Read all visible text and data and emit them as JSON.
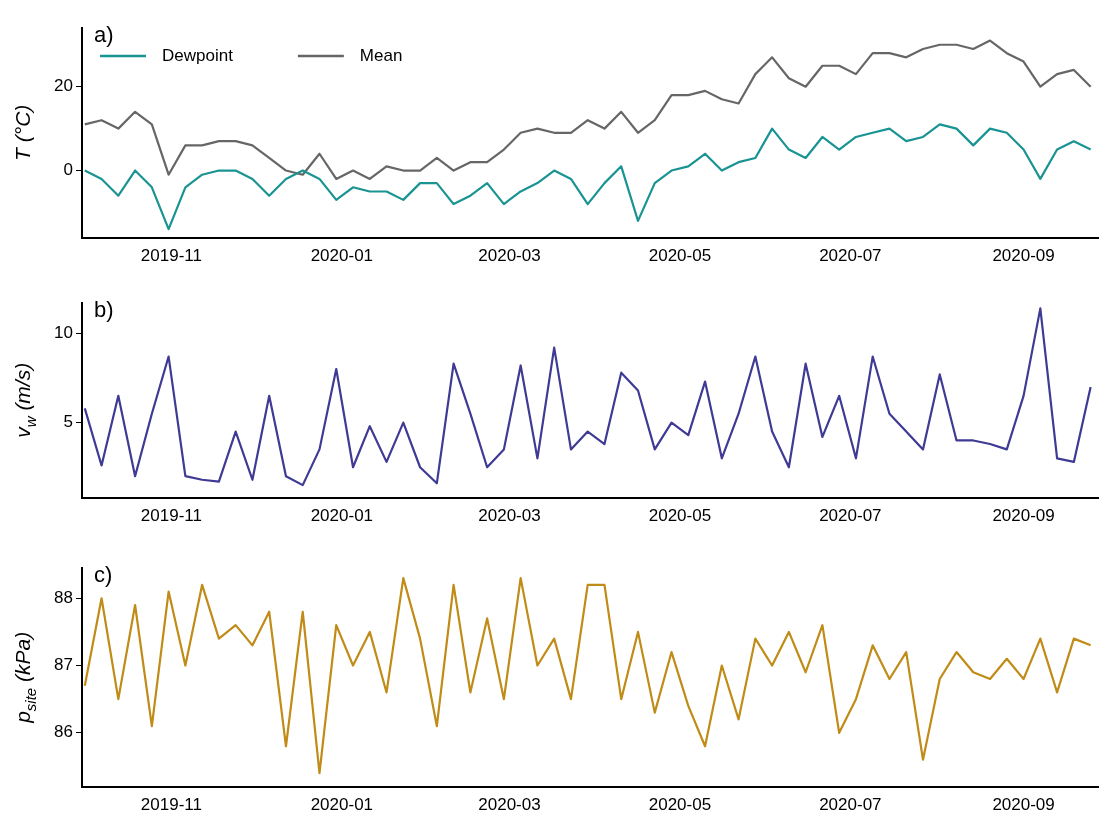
{
  "chart_data": [
    {
      "type": "line",
      "title": "a)",
      "ylabel": "T (°C)",
      "legend": "top left",
      "x": [
        "2019-10-01",
        "2019-10-07",
        "2019-10-13",
        "2019-10-19",
        "2019-10-25",
        "2019-10-31",
        "2019-11-06",
        "2019-11-12",
        "2019-11-18",
        "2019-11-24",
        "2019-11-30",
        "2019-12-06",
        "2019-12-12",
        "2019-12-18",
        "2019-12-24",
        "2019-12-30",
        "2020-01-05",
        "2020-01-11",
        "2020-01-17",
        "2020-01-23",
        "2020-01-29",
        "2020-02-04",
        "2020-02-10",
        "2020-02-16",
        "2020-02-22",
        "2020-02-28",
        "2020-03-05",
        "2020-03-11",
        "2020-03-17",
        "2020-03-23",
        "2020-03-29",
        "2020-04-04",
        "2020-04-10",
        "2020-04-16",
        "2020-04-22",
        "2020-04-28",
        "2020-05-04",
        "2020-05-10",
        "2020-05-16",
        "2020-05-22",
        "2020-05-28",
        "2020-06-03",
        "2020-06-09",
        "2020-06-15",
        "2020-06-21",
        "2020-06-27",
        "2020-07-03",
        "2020-07-09",
        "2020-07-15",
        "2020-07-21",
        "2020-07-27",
        "2020-08-02",
        "2020-08-08",
        "2020-08-14",
        "2020-08-20",
        "2020-08-26",
        "2020-09-01",
        "2020-09-07",
        "2020-09-13",
        "2020-09-19",
        "2020-09-25"
      ],
      "series": [
        {
          "name": "Dewpoint",
          "color": "#1a9393",
          "values": [
            0,
            -2,
            -6,
            0,
            -4,
            -14,
            -4,
            -1,
            0,
            0,
            -2,
            -6,
            -2,
            0,
            -2,
            -7,
            -4,
            -5,
            -5,
            -7,
            -3,
            -3,
            -8,
            -6,
            -3,
            -8,
            -5,
            -3,
            0,
            -2,
            -8,
            -3,
            1,
            -12,
            -3,
            0,
            1,
            4,
            0,
            2,
            3,
            10,
            5,
            3,
            8,
            5,
            8,
            9,
            10,
            7,
            8,
            11,
            10,
            6,
            10,
            9,
            5,
            -2,
            5,
            7,
            5
          ]
        },
        {
          "name": "Mean",
          "color": "#666666",
          "values": [
            11,
            12,
            10,
            14,
            11,
            -1,
            6,
            6,
            7,
            7,
            6,
            3,
            0,
            -1,
            4,
            -2,
            0,
            -2,
            1,
            0,
            0,
            3,
            0,
            2,
            2,
            5,
            9,
            10,
            9,
            9,
            12,
            10,
            14,
            9,
            12,
            18,
            18,
            19,
            17,
            16,
            23,
            27,
            22,
            20,
            25,
            25,
            23,
            28,
            28,
            27,
            29,
            30,
            30,
            29,
            31,
            28,
            26,
            20,
            23,
            24,
            20
          ]
        }
      ],
      "xlim": [
        "2019-09-30",
        "2020-09-28"
      ],
      "xticks": [
        {
          "value": "2019-11-01",
          "label": "2019-11"
        },
        {
          "value": "2020-01-01",
          "label": "2020-01"
        },
        {
          "value": "2020-03-01",
          "label": "2020-03"
        },
        {
          "value": "2020-05-01",
          "label": "2020-05"
        },
        {
          "value": "2020-07-01",
          "label": "2020-07"
        },
        {
          "value": "2020-09-01",
          "label": "2020-09"
        }
      ],
      "ylim": [
        -16,
        34
      ],
      "yticks": [
        0,
        20
      ]
    },
    {
      "type": "line",
      "title": "b)",
      "ylabel": "v$_{w}$ (m/s)",
      "x": [
        "2019-10-01",
        "2019-10-07",
        "2019-10-13",
        "2019-10-19",
        "2019-10-25",
        "2019-10-31",
        "2019-11-06",
        "2019-11-12",
        "2019-11-18",
        "2019-11-24",
        "2019-11-30",
        "2019-12-06",
        "2019-12-12",
        "2019-12-18",
        "2019-12-24",
        "2019-12-30",
        "2020-01-05",
        "2020-01-11",
        "2020-01-17",
        "2020-01-23",
        "2020-01-29",
        "2020-02-04",
        "2020-02-10",
        "2020-02-16",
        "2020-02-22",
        "2020-02-28",
        "2020-03-05",
        "2020-03-11",
        "2020-03-17",
        "2020-03-23",
        "2020-03-29",
        "2020-04-04",
        "2020-04-10",
        "2020-04-16",
        "2020-04-22",
        "2020-04-28",
        "2020-05-04",
        "2020-05-10",
        "2020-05-16",
        "2020-05-22",
        "2020-05-28",
        "2020-06-03",
        "2020-06-09",
        "2020-06-15",
        "2020-06-21",
        "2020-06-27",
        "2020-07-03",
        "2020-07-09",
        "2020-07-15",
        "2020-07-21",
        "2020-07-27",
        "2020-08-02",
        "2020-08-08",
        "2020-08-14",
        "2020-08-20",
        "2020-08-26",
        "2020-09-01",
        "2020-09-07",
        "2020-09-13",
        "2020-09-19",
        "2020-09-25"
      ],
      "series": [
        {
          "color": "#3f3a94",
          "values": [
            5.8,
            2.6,
            6.5,
            2.0,
            5.5,
            8.7,
            2.0,
            1.8,
            1.7,
            4.5,
            1.8,
            6.5,
            2.0,
            1.5,
            3.5,
            8.0,
            2.5,
            4.8,
            2.8,
            5.0,
            2.5,
            1.6,
            8.3,
            5.5,
            2.5,
            3.5,
            8.2,
            3.0,
            9.2,
            3.5,
            4.5,
            3.8,
            7.8,
            6.8,
            3.5,
            5.0,
            4.3,
            7.3,
            3.0,
            5.5,
            8.7,
            4.5,
            2.5,
            8.3,
            4.2,
            6.5,
            3.0,
            8.7,
            5.5,
            4.5,
            3.5,
            7.7,
            4.0,
            4.0,
            3.8,
            3.5,
            6.5,
            11.4,
            3.0,
            2.8,
            7.0
          ]
        }
      ],
      "xlim": [
        "2019-09-30",
        "2020-09-28"
      ],
      "xticks": [
        {
          "value": "2019-11-01",
          "label": "2019-11"
        },
        {
          "value": "2020-01-01",
          "label": "2020-01"
        },
        {
          "value": "2020-03-01",
          "label": "2020-03"
        },
        {
          "value": "2020-05-01",
          "label": "2020-05"
        },
        {
          "value": "2020-07-01",
          "label": "2020-07"
        },
        {
          "value": "2020-09-01",
          "label": "2020-09"
        }
      ],
      "ylim": [
        0.8,
        11.7
      ],
      "yticks": [
        5,
        10
      ]
    },
    {
      "type": "line",
      "title": "c)",
      "ylabel": "p$_{site}$ (kPa)",
      "x": [
        "2019-10-01",
        "2019-10-07",
        "2019-10-13",
        "2019-10-19",
        "2019-10-25",
        "2019-10-31",
        "2019-11-06",
        "2019-11-12",
        "2019-11-18",
        "2019-11-24",
        "2019-11-30",
        "2019-12-06",
        "2019-12-12",
        "2019-12-18",
        "2019-12-24",
        "2019-12-30",
        "2020-01-05",
        "2020-01-11",
        "2020-01-17",
        "2020-01-23",
        "2020-01-29",
        "2020-02-04",
        "2020-02-10",
        "2020-02-16",
        "2020-02-22",
        "2020-02-28",
        "2020-03-05",
        "2020-03-11",
        "2020-03-17",
        "2020-03-23",
        "2020-03-29",
        "2020-04-04",
        "2020-04-10",
        "2020-04-16",
        "2020-04-22",
        "2020-04-28",
        "2020-05-04",
        "2020-05-10",
        "2020-05-16",
        "2020-05-22",
        "2020-05-28",
        "2020-06-03",
        "2020-06-09",
        "2020-06-15",
        "2020-06-21",
        "2020-06-27",
        "2020-07-03",
        "2020-07-09",
        "2020-07-15",
        "2020-07-21",
        "2020-07-27",
        "2020-08-02",
        "2020-08-08",
        "2020-08-14",
        "2020-08-20",
        "2020-08-26",
        "2020-09-01",
        "2020-09-07",
        "2020-09-13",
        "2020-09-19",
        "2020-09-25"
      ],
      "series": [
        {
          "color": "#c08b17",
          "values": [
            86.7,
            88.0,
            86.5,
            87.9,
            86.1,
            88.1,
            87.0,
            88.2,
            87.4,
            87.6,
            87.3,
            87.8,
            85.8,
            87.8,
            85.4,
            87.6,
            87.0,
            87.5,
            86.6,
            88.3,
            87.4,
            86.1,
            88.2,
            86.6,
            87.7,
            86.5,
            88.3,
            87.0,
            87.4,
            86.5,
            88.2,
            88.2,
            86.5,
            87.5,
            86.3,
            87.2,
            86.4,
            85.8,
            87.0,
            86.2,
            87.4,
            87.0,
            87.5,
            86.9,
            87.6,
            86.0,
            86.5,
            87.3,
            86.8,
            87.2,
            85.6,
            86.8,
            87.2,
            86.9,
            86.8,
            87.1,
            86.8,
            87.4,
            86.6,
            87.4,
            87.3
          ]
        }
      ],
      "xlim": [
        "2019-09-30",
        "2020-09-28"
      ],
      "xticks": [
        {
          "value": "2019-11-01",
          "label": "2019-11"
        },
        {
          "value": "2020-01-01",
          "label": "2020-01"
        },
        {
          "value": "2020-03-01",
          "label": "2020-03"
        },
        {
          "value": "2020-05-01",
          "label": "2020-05"
        },
        {
          "value": "2020-07-01",
          "label": "2020-07"
        },
        {
          "value": "2020-09-01",
          "label": "2020-09"
        }
      ],
      "ylim": [
        85.2,
        88.45
      ],
      "yticks": [
        86,
        87,
        88
      ]
    }
  ]
}
